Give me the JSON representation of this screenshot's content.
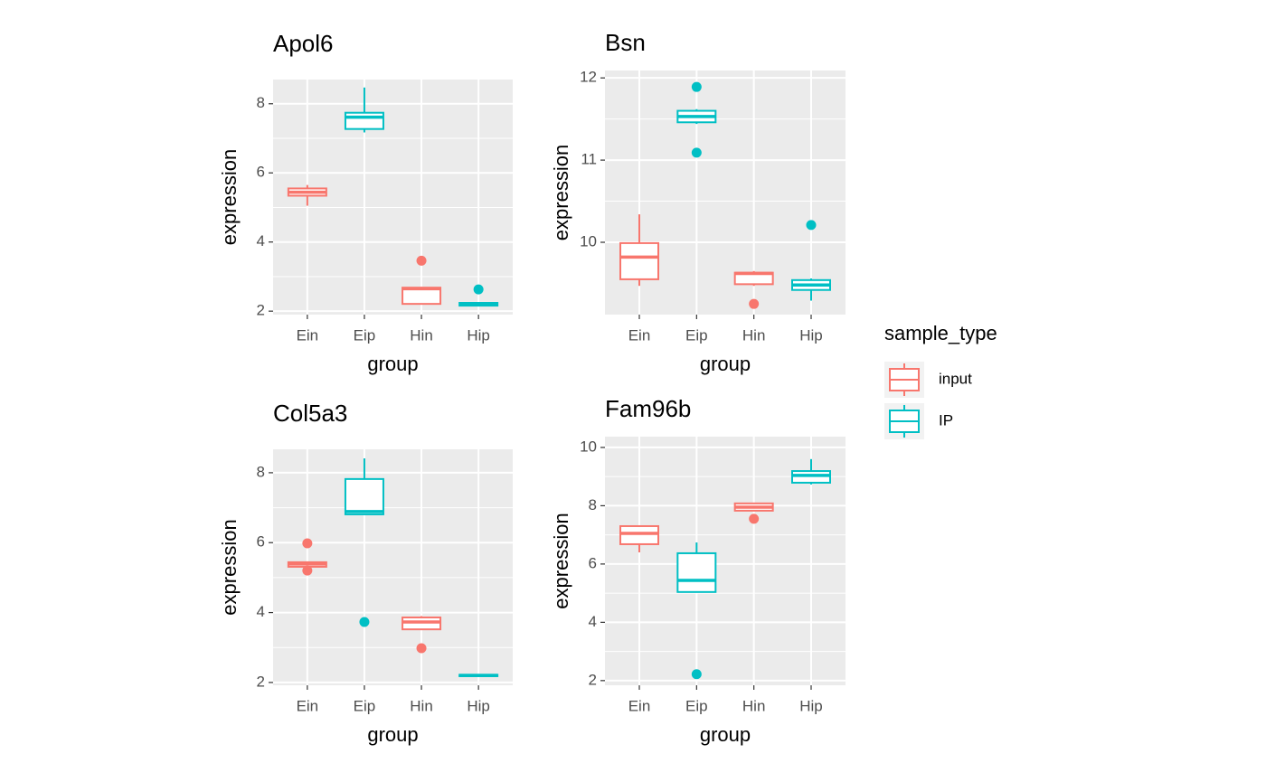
{
  "chart_data": [
    {
      "type": "boxplot",
      "title": "Apol6",
      "x_label": "group",
      "y_label": "expression",
      "categories": [
        "Ein",
        "Eip",
        "Hin",
        "Hip"
      ],
      "ylim": [
        1.9,
        8.7
      ],
      "yticks": [
        2,
        4,
        6,
        8
      ],
      "grid": true,
      "boxes": [
        {
          "sample_type": "input",
          "min": 5.05,
          "q1": 5.34,
          "median": 5.44,
          "q3": 5.55,
          "max": 5.65,
          "outliers": []
        },
        {
          "sample_type": "IP",
          "min": 7.17,
          "q1": 7.27,
          "median": 7.61,
          "q3": 7.74,
          "max": 8.47,
          "outliers": []
        },
        {
          "sample_type": "input",
          "min": 2.2,
          "q1": 2.21,
          "median": 2.65,
          "q3": 2.68,
          "max": 2.7,
          "outliers": [
            3.46
          ]
        },
        {
          "sample_type": "IP",
          "min": 2.15,
          "q1": 2.16,
          "median": 2.2,
          "q3": 2.24,
          "max": 2.25,
          "outliers": [
            2.63
          ]
        }
      ]
    },
    {
      "type": "boxplot",
      "title": "Bsn",
      "x_label": "group",
      "y_label": "expression",
      "categories": [
        "Ein",
        "Eip",
        "Hin",
        "Hip"
      ],
      "ylim": [
        9.12,
        12.09
      ],
      "yticks": [
        10,
        11,
        12
      ],
      "grid": true,
      "boxes": [
        {
          "sample_type": "input",
          "min": 9.47,
          "q1": 9.55,
          "median": 9.82,
          "q3": 9.99,
          "max": 10.34,
          "outliers": []
        },
        {
          "sample_type": "IP",
          "min": 11.44,
          "q1": 11.46,
          "median": 11.53,
          "q3": 11.6,
          "max": 11.62,
          "outliers": [
            11.89,
            11.09
          ]
        },
        {
          "sample_type": "input",
          "min": 9.47,
          "q1": 9.49,
          "median": 9.62,
          "q3": 9.63,
          "max": 9.65,
          "outliers": [
            9.25
          ]
        },
        {
          "sample_type": "IP",
          "min": 9.29,
          "q1": 9.42,
          "median": 9.48,
          "q3": 9.54,
          "max": 9.56,
          "outliers": [
            10.21
          ]
        }
      ]
    },
    {
      "type": "boxplot",
      "title": "Col5a3",
      "x_label": "group",
      "y_label": "expression",
      "categories": [
        "Ein",
        "Eip",
        "Hin",
        "Hip"
      ],
      "ylim": [
        1.92,
        8.67
      ],
      "yticks": [
        2,
        4,
        6,
        8
      ],
      "grid": true,
      "boxes": [
        {
          "sample_type": "input",
          "min": 5.31,
          "q1": 5.31,
          "median": 5.39,
          "q3": 5.44,
          "max": 5.44,
          "outliers": [
            5.98,
            5.2
          ]
        },
        {
          "sample_type": "IP",
          "min": 6.81,
          "q1": 6.81,
          "median": 6.89,
          "q3": 7.82,
          "max": 8.41,
          "outliers": [
            3.73
          ]
        },
        {
          "sample_type": "input",
          "min": 3.5,
          "q1": 3.52,
          "median": 3.73,
          "q3": 3.86,
          "max": 3.9,
          "outliers": [
            2.98
          ]
        },
        {
          "sample_type": "IP",
          "min": 2.18,
          "q1": 2.18,
          "median": 2.2,
          "q3": 2.22,
          "max": 2.22,
          "outliers": []
        }
      ]
    },
    {
      "type": "boxplot",
      "title": "Fam96b",
      "x_label": "group",
      "y_label": "expression",
      "categories": [
        "Ein",
        "Eip",
        "Hin",
        "Hip"
      ],
      "ylim": [
        1.84,
        10.37
      ],
      "yticks": [
        2,
        4,
        6,
        8,
        10
      ],
      "grid": true,
      "boxes": [
        {
          "sample_type": "input",
          "min": 6.4,
          "q1": 6.68,
          "median": 7.05,
          "q3": 7.3,
          "max": 7.33,
          "outliers": []
        },
        {
          "sample_type": "IP",
          "min": 5.04,
          "q1": 5.04,
          "median": 5.44,
          "q3": 6.37,
          "max": 6.74,
          "outliers": [
            2.22
          ]
        },
        {
          "sample_type": "input",
          "min": 7.83,
          "q1": 7.83,
          "median": 7.95,
          "q3": 8.08,
          "max": 8.1,
          "outliers": [
            7.55
          ]
        },
        {
          "sample_type": "IP",
          "min": 8.73,
          "q1": 8.79,
          "median": 9.04,
          "q3": 9.19,
          "max": 9.6,
          "outliers": []
        }
      ]
    }
  ],
  "legend": {
    "title": "sample_type",
    "entries": [
      {
        "name": "input",
        "color": "#F8766D"
      },
      {
        "name": "IP",
        "color": "#00BFC4"
      }
    ]
  }
}
